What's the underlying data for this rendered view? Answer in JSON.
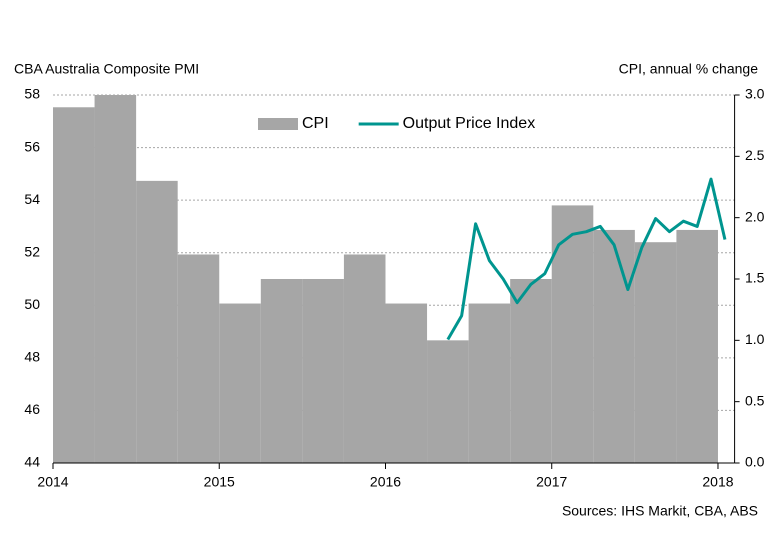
{
  "chart_data": {
    "type": "combo",
    "y_label": "CBA Australia Composite  PMI",
    "y2_label": "CPI, annual % change",
    "source": "Sources: IHS Markit,  CBA, ABS",
    "xlim": [
      2014,
      2018.1
    ],
    "xticks": [
      2014,
      2015,
      2016,
      2017,
      2018
    ],
    "ylim": [
      44,
      58
    ],
    "yticks": [
      44,
      46,
      48,
      50,
      52,
      54,
      56,
      58
    ],
    "y2lim": [
      0,
      3
    ],
    "y2ticks": [
      {
        "value": 0,
        "label": "0.0"
      },
      0.5,
      {
        "value": 1,
        "label": "1.0"
      },
      1.5,
      {
        "value": 2,
        "label": "2.0"
      },
      2.5,
      {
        "value": 3,
        "label": "3.0"
      }
    ],
    "grid": true,
    "legend": "top",
    "series": [
      {
        "name": "CPI",
        "type": "bar",
        "axis": "y2",
        "color": "#a6a6a6",
        "x": [
          2014,
          2014.25,
          2014.5,
          2014.75,
          2015,
          2015.25,
          2015.5,
          2015.75,
          2016,
          2016.25,
          2016.5,
          2016.75,
          2017,
          2017.25,
          2017.5,
          2017.75
        ],
        "values": [
          2.9,
          3.0,
          2.3,
          1.7,
          1.3,
          1.5,
          1.5,
          1.7,
          1.3,
          1.0,
          1.3,
          1.5,
          2.1,
          1.9,
          1.8,
          1.9
        ]
      },
      {
        "name": "Output Price Index",
        "type": "line",
        "color": "#00958f",
        "x": [
          2016.375,
          2016.458,
          2016.542,
          2016.625,
          2016.708,
          2016.792,
          2016.875,
          2016.958,
          2017.042,
          2017.125,
          2017.208,
          2017.292,
          2017.375,
          2017.458,
          2017.542,
          2017.625,
          2017.708,
          2017.792,
          2017.875,
          2017.958,
          2018.042
        ],
        "values": [
          48.7,
          49.6,
          53.1,
          51.7,
          51.0,
          50.1,
          50.8,
          51.2,
          52.3,
          52.7,
          52.8,
          53.0,
          52.3,
          50.6,
          52.2,
          53.3,
          52.8,
          53.2,
          53.0,
          54.8,
          52.5
        ]
      }
    ]
  }
}
